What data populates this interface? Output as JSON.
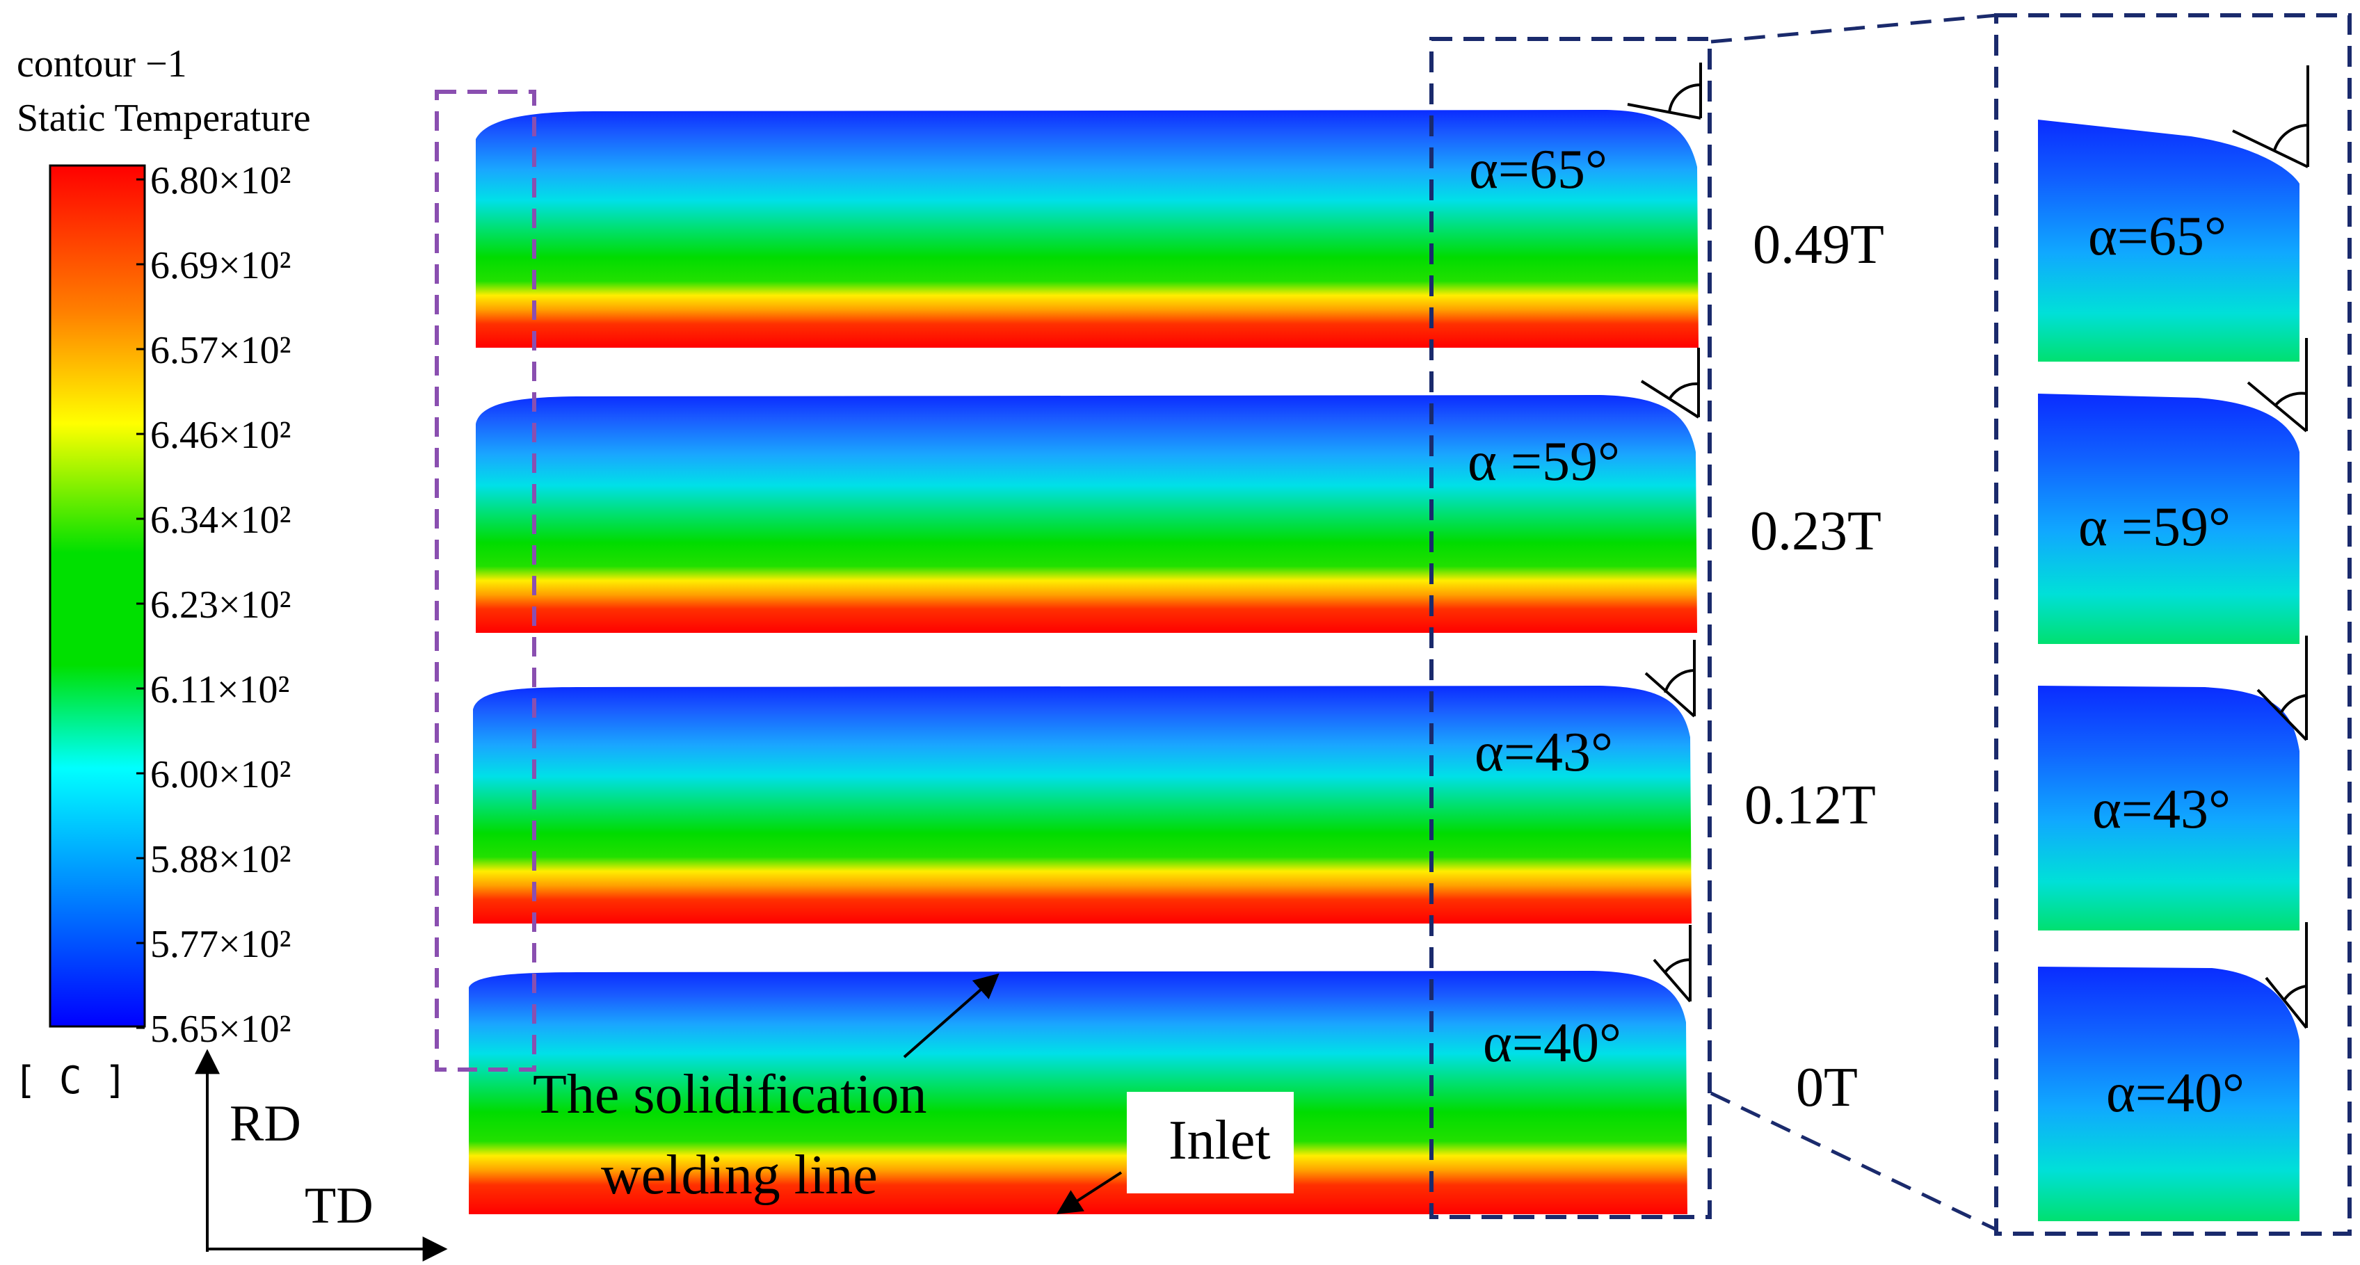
{
  "legend": {
    "header_line1": "contour −1",
    "header_line2": "Static Temperature",
    "unit": "[ C ]",
    "ticks": [
      "6.80×10²",
      "6.69×10²",
      "6.57×10²",
      "6.46×10²",
      "6.34×10²",
      "6.23×10²",
      "6.11×10²",
      "6.00×10²",
      "5.88×10²",
      "5.77×10²",
      "5.65×10²"
    ],
    "colors": [
      "#ff0000",
      "#ff8000",
      "#ffff00",
      "#00e000",
      "#00ffff",
      "#0080ff",
      "#0000ff"
    ]
  },
  "axes": {
    "vertical": "RD",
    "horizontal": "TD"
  },
  "panels": [
    {
      "angle_label": "α=65°",
      "time_label": "0.49T",
      "zoom_angle_label": "α=65°"
    },
    {
      "angle_label": "α =59°",
      "time_label": "0.23T",
      "zoom_angle_label": "α =59°"
    },
    {
      "angle_label": "α=43°",
      "time_label": "0.12T",
      "zoom_angle_label": "α=43°"
    },
    {
      "angle_label": "α=40°",
      "time_label": "0T",
      "zoom_angle_label": "α=40°"
    }
  ],
  "annotations": {
    "solidification_line1": "The solidification",
    "solidification_line2": "welding line",
    "inlet": "Inlet"
  },
  "colors": {
    "purple_box": "#8a4fb0",
    "navy_box": "#1a2a6c"
  }
}
